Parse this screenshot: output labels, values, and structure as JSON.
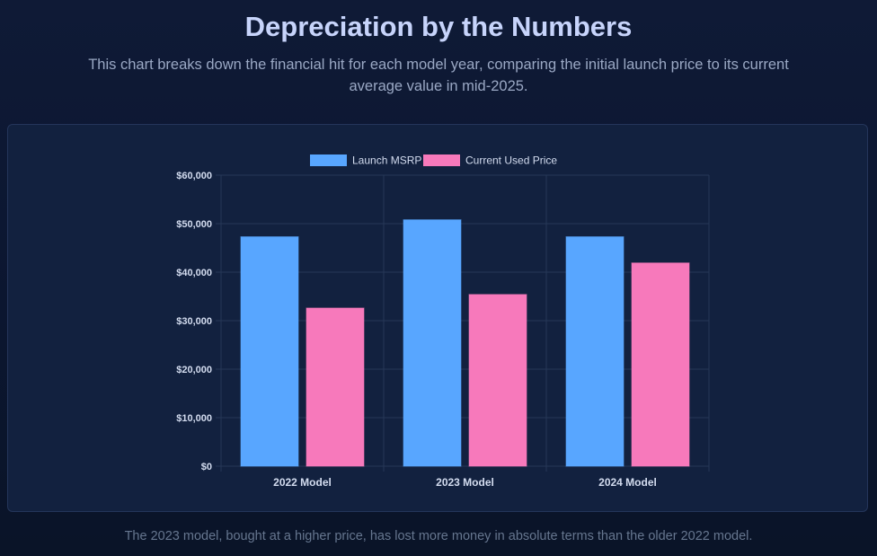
{
  "header": {
    "title": "Depreciation by the Numbers",
    "subtitle": "This chart breaks down the financial hit for each model year, comparing the initial launch price to its current average value in mid-2025."
  },
  "footer": {
    "caption": "The 2023 model, bought at a higher price, has lost more money in absolute terms than the older 2022 model."
  },
  "colors": {
    "page_background": "#0b1630",
    "card_background": "#12213f",
    "title": "#c7d4fb",
    "text_muted": "#9aa8c4",
    "grid": "#263757",
    "tick_label": "#d3dcef",
    "launch_msrp": "#58a6ff",
    "current_used_price": "#f779bb"
  },
  "chart_data": {
    "type": "bar",
    "categories": [
      "2022 Model",
      "2023 Model",
      "2024 Model"
    ],
    "series": [
      {
        "name": "Launch MSRP",
        "values": [
          47300,
          50800,
          47300
        ],
        "color": "#58a6ff"
      },
      {
        "name": "Current Used Price",
        "values": [
          32600,
          35400,
          41900
        ],
        "color": "#f779bb"
      }
    ],
    "ylim": [
      0,
      60000
    ],
    "y_ticks": [
      0,
      10000,
      20000,
      30000,
      40000,
      50000,
      60000
    ],
    "y_tick_labels": [
      "$0",
      "$10,000",
      "$20,000",
      "$30,000",
      "$40,000",
      "$50,000",
      "$60,000"
    ],
    "legend_position": "top-center",
    "grid": true
  }
}
